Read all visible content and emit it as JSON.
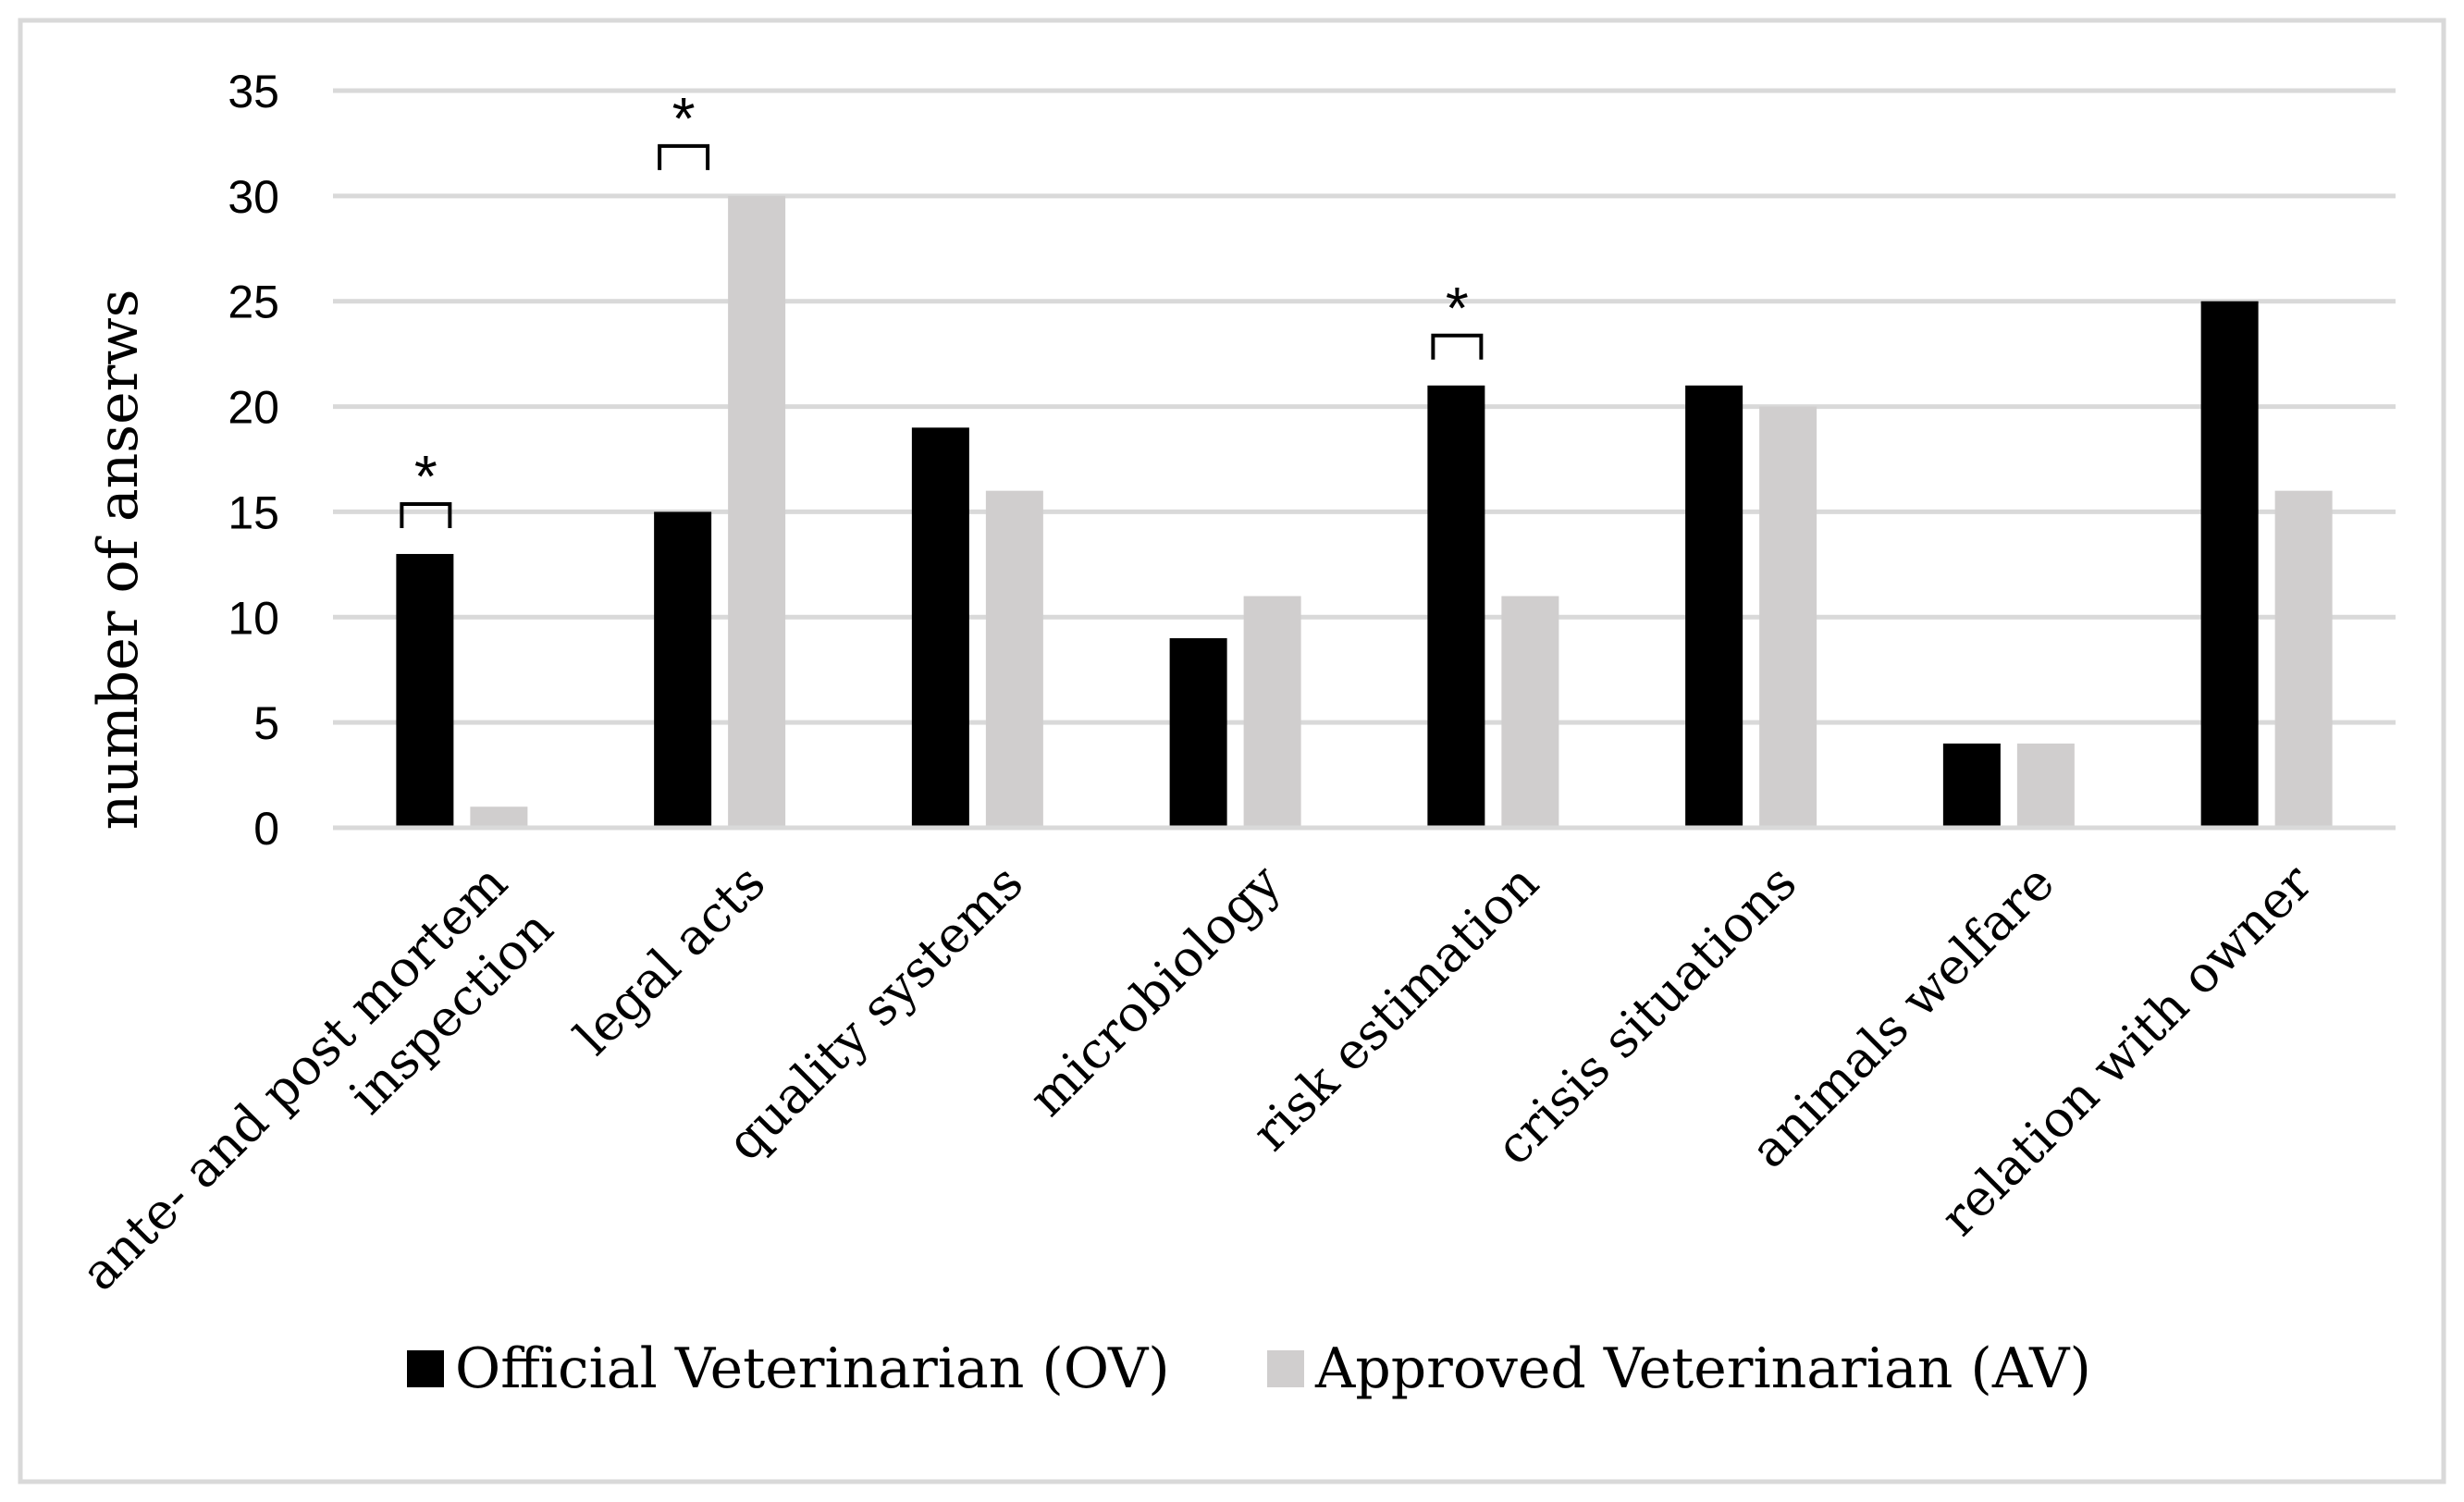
{
  "chart_data": {
    "type": "bar",
    "title": "",
    "xlabel": "",
    "ylabel": "number of anserws",
    "ylim": [
      0,
      35
    ],
    "yticks": [
      0,
      5,
      10,
      15,
      20,
      25,
      30,
      35
    ],
    "grid": true,
    "legend_position": "bottom",
    "categories": [
      [
        "ante- and post mortem",
        "inspection"
      ],
      [
        "legal acts"
      ],
      [
        "quality systems"
      ],
      [
        "microbiology"
      ],
      [
        "risk estimation"
      ],
      [
        "crisis situations"
      ],
      [
        "animals welfare"
      ],
      [
        "relation with owner"
      ]
    ],
    "series": [
      {
        "name": "Official Veterinarian (OV)",
        "color": "#000000",
        "values": [
          13,
          15,
          19,
          9,
          21,
          21,
          4,
          25
        ]
      },
      {
        "name": "Approved Veterinarian (AV)",
        "color": "#d0cece",
        "values": [
          1,
          30,
          16,
          11,
          11,
          20,
          4,
          16
        ]
      }
    ],
    "significance": {
      "marker": "*",
      "category_indices": [
        0,
        1,
        4
      ]
    }
  }
}
